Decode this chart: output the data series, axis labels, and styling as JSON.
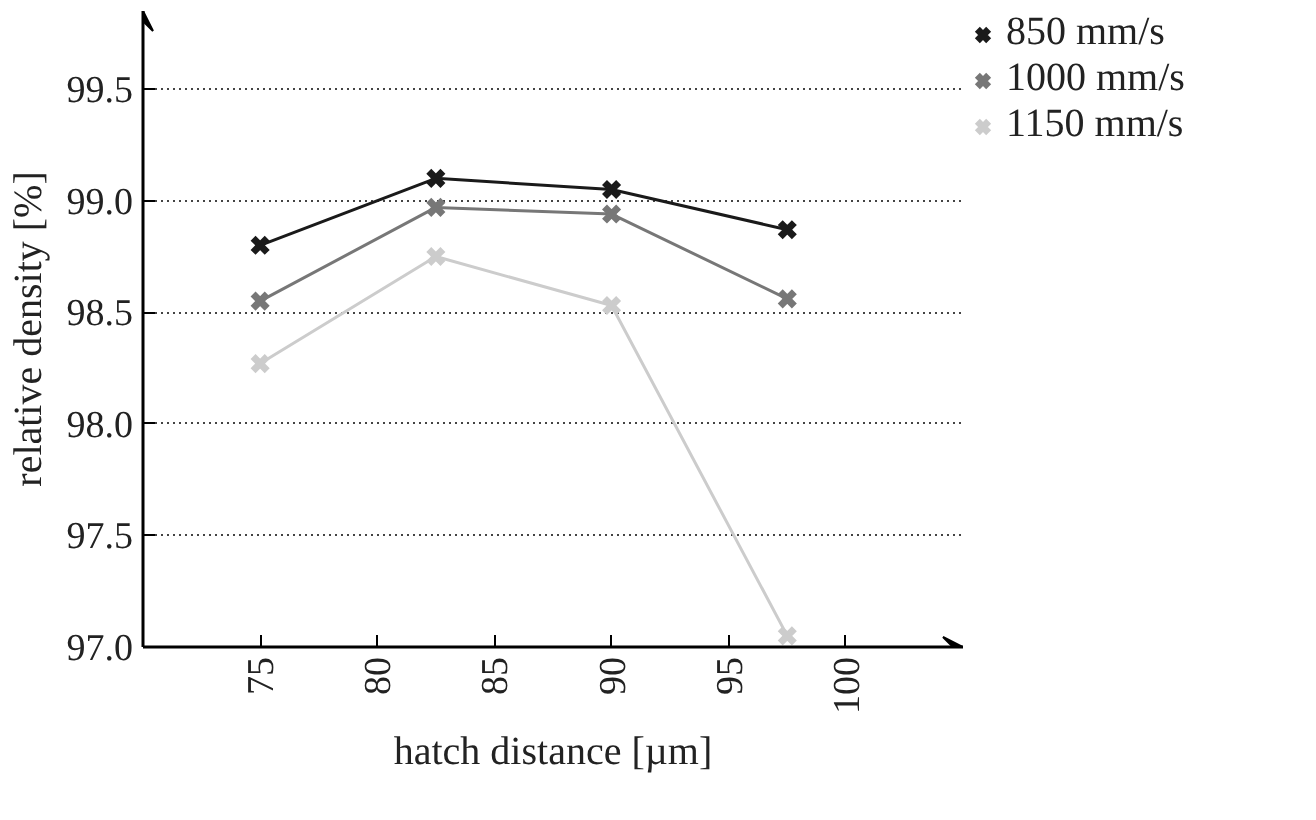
{
  "chart_data": {
    "type": "line",
    "xlabel": "hatch distance [µm]",
    "ylabel": "relative density [%]",
    "x": [
      75,
      82.5,
      90,
      97.5
    ],
    "series": [
      {
        "name": "850 mm/s",
        "color": "#1a1a1a",
        "values": [
          98.8,
          99.1,
          99.05,
          98.87
        ]
      },
      {
        "name": "1000 mm/s",
        "color": "#777777",
        "values": [
          98.55,
          98.97,
          98.94,
          98.56
        ]
      },
      {
        "name": "1150 mm/s",
        "color": "#cccccc",
        "values": [
          98.27,
          98.75,
          98.53,
          97.05
        ]
      }
    ],
    "xlim": [
      70,
      105
    ],
    "ylim": [
      97.0,
      99.85
    ],
    "xticks": [
      75,
      80,
      85,
      90,
      95,
      100
    ],
    "yticks": [
      {
        "value": 97.0,
        "label": "97.0"
      },
      {
        "value": 97.5,
        "label": "97.5"
      },
      {
        "value": 98.0,
        "label": "98.0"
      },
      {
        "value": 98.5,
        "label": "98.5"
      },
      {
        "value": 99.0,
        "label": "99.0"
      },
      {
        "value": 99.5,
        "label": "99.5"
      }
    ],
    "grid": "y",
    "legend": "right",
    "marker": "cross",
    "line_style": "solid"
  }
}
